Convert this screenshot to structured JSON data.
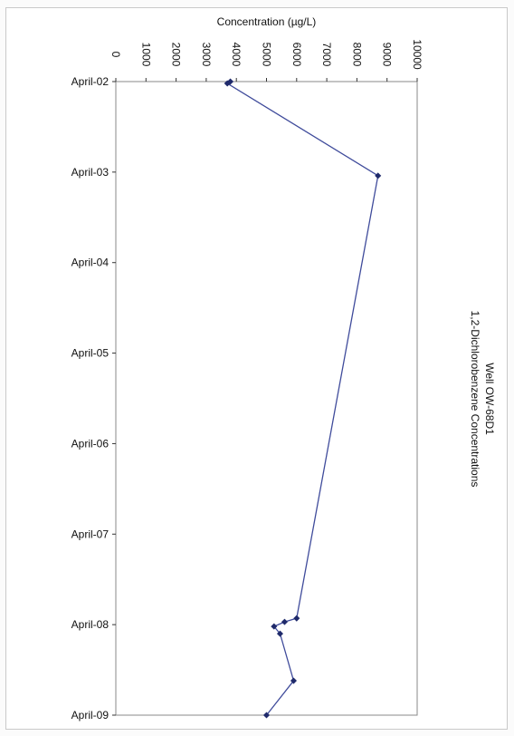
{
  "chart_data": {
    "type": "line",
    "title": "Well OW-68D1",
    "subtitle": "1,2-Dichlorobenzene Concentrations",
    "ylabel": "Concentration (µg/L)",
    "xlabel": "",
    "ylim": [
      0,
      10000
    ],
    "yticks": [
      "0",
      "1000",
      "2000",
      "3000",
      "4000",
      "5000",
      "6000",
      "7000",
      "8000",
      "9000",
      "10000"
    ],
    "categories": [
      "April-02",
      "April-03",
      "April-04",
      "April-05",
      "April-06",
      "April-07",
      "April-08",
      "April-09"
    ],
    "series": [
      {
        "x": [
          0.0,
          0.02,
          1.04,
          5.93,
          5.97,
          6.02,
          6.1,
          6.62,
          7.0
        ],
        "values": [
          3800,
          3700,
          8700,
          6000,
          5600,
          5250,
          5450,
          5900,
          5000
        ]
      }
    ],
    "line_color": "#3f4b9b",
    "grid": false,
    "orientation": "rotated-90-clockwise"
  }
}
